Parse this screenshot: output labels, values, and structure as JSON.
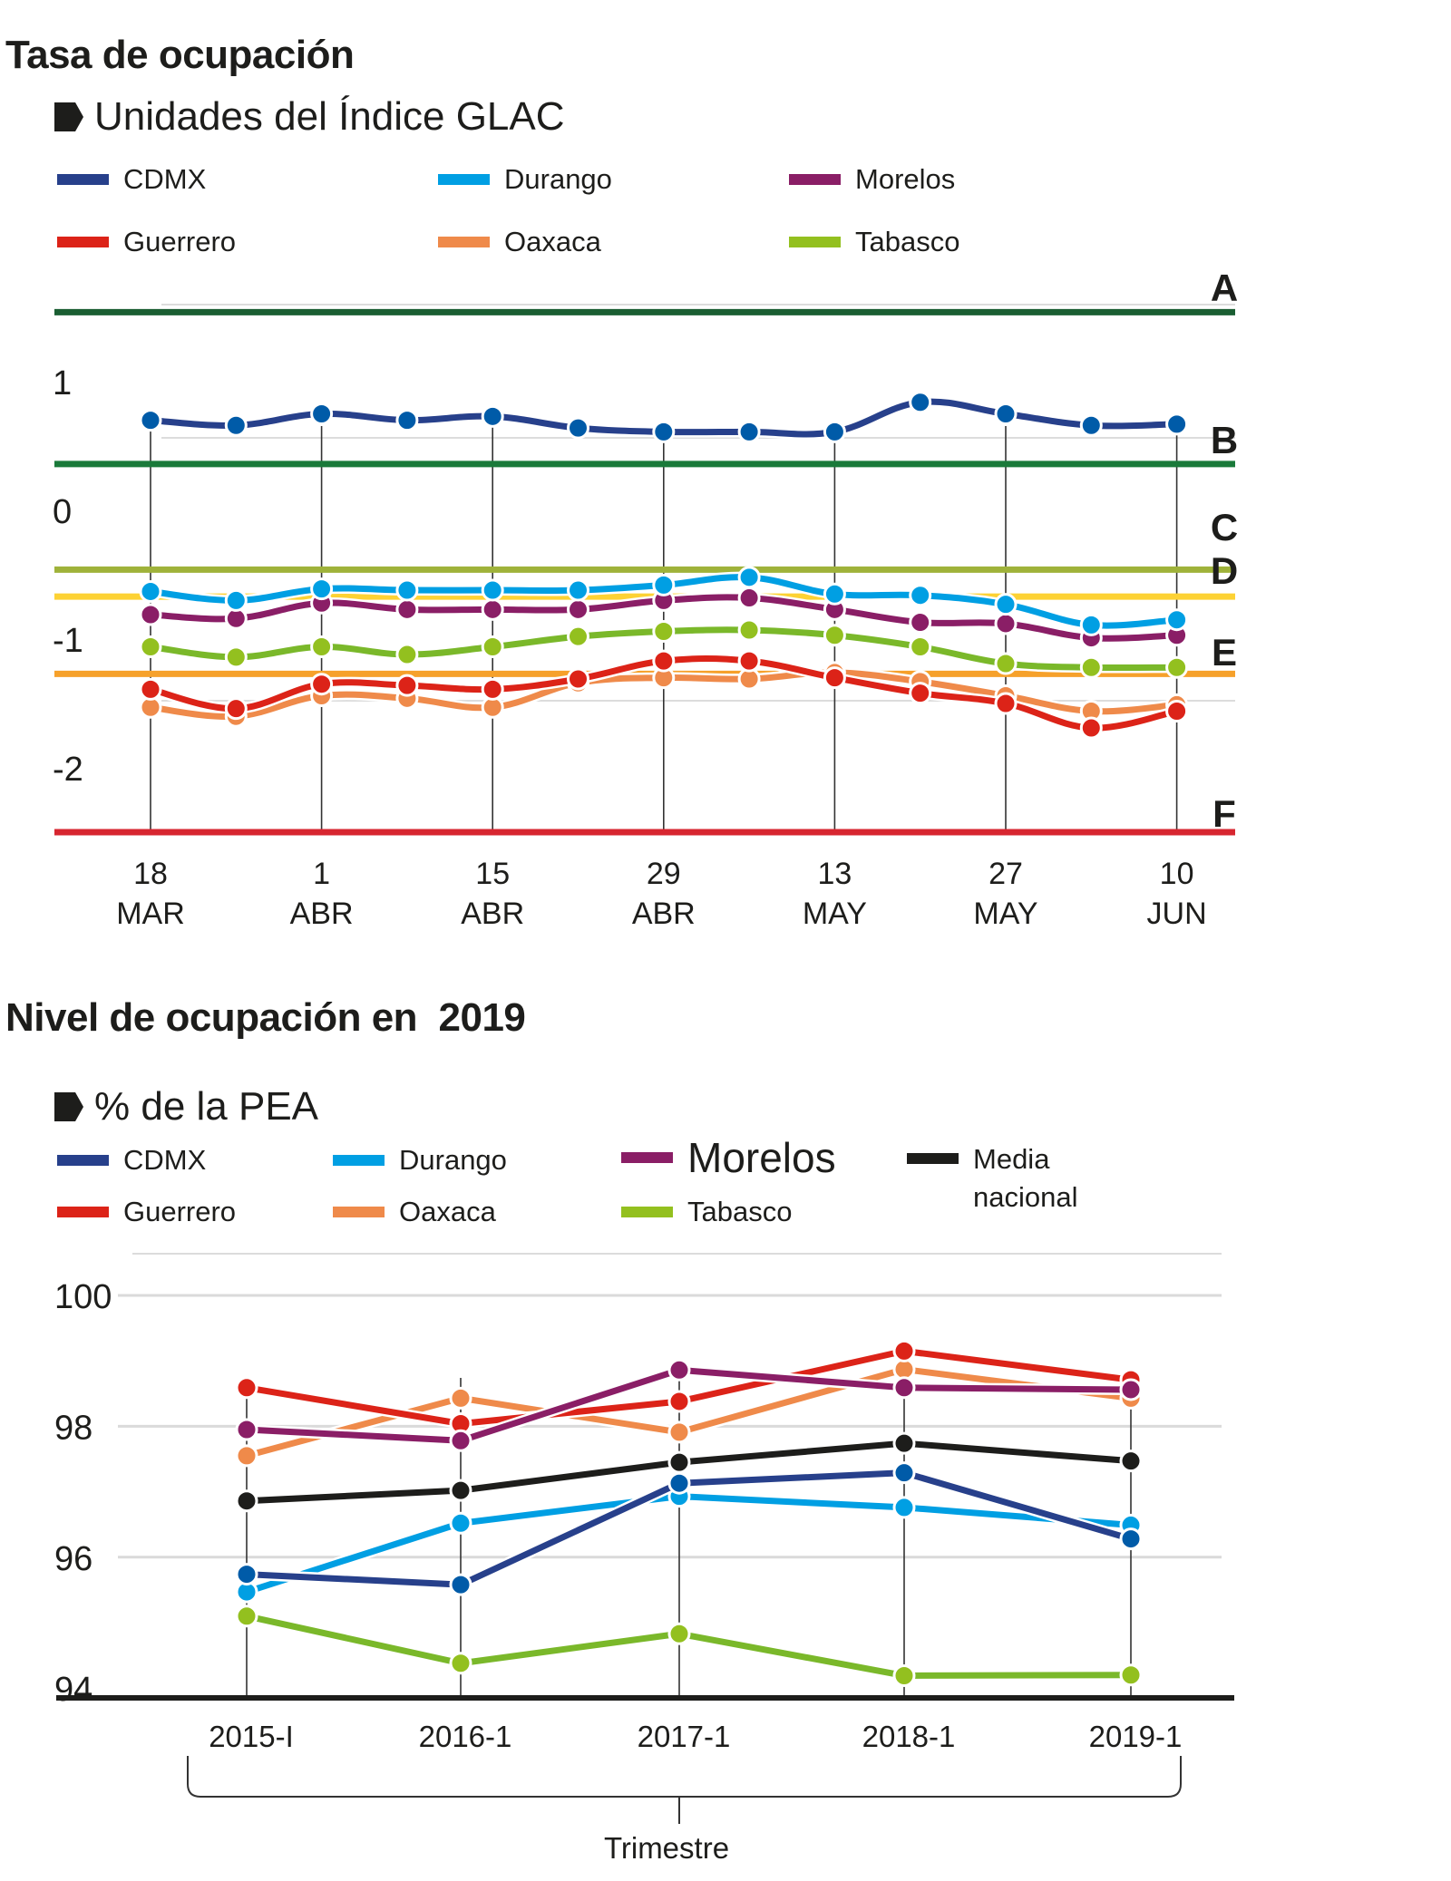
{
  "chart_data": [
    {
      "type": "line",
      "title": "Tasa de ocupación",
      "subtitle": "Unidades del Índice GLAC",
      "xlabel": "",
      "ylabel": "",
      "ylim": [
        -2.5,
        1.55
      ],
      "y_ticks": [
        "1",
        "0",
        "-1",
        "-2"
      ],
      "y_tick_values": [
        1,
        0,
        -1,
        -2
      ],
      "x_tick_labels": [
        {
          "day": "18",
          "month": "MAR"
        },
        {
          "day": "1",
          "month": "ABR"
        },
        {
          "day": "15",
          "month": "ABR"
        },
        {
          "day": "29",
          "month": "ABR"
        },
        {
          "day": "13",
          "month": "MAY"
        },
        {
          "day": "27",
          "month": "MAY"
        },
        {
          "day": "10",
          "month": "JUN"
        }
      ],
      "x_tick_every": 2,
      "n_points": 13,
      "grid": false,
      "legend_position": "top",
      "series": [
        {
          "name": "CDMX",
          "color": "#27408b",
          "marker_color": "#005ba8",
          "values": [
            0.7,
            0.66,
            0.75,
            0.7,
            0.73,
            0.64,
            0.61,
            0.61,
            0.61,
            0.84,
            0.75,
            0.66,
            0.67
          ]
        },
        {
          "name": "Durango",
          "color": "#009fe3",
          "marker_color": "#009fe3",
          "values": [
            -0.63,
            -0.7,
            -0.61,
            -0.62,
            -0.62,
            -0.62,
            -0.58,
            -0.52,
            -0.65,
            -0.66,
            -0.73,
            -0.89,
            -0.85
          ]
        },
        {
          "name": "Morelos",
          "color": "#8a1e66",
          "marker_color": "#8a1e66",
          "values": [
            -0.81,
            -0.84,
            -0.72,
            -0.77,
            -0.77,
            -0.77,
            -0.7,
            -0.68,
            -0.77,
            -0.87,
            -0.88,
            -0.99,
            -0.97
          ]
        },
        {
          "name": "Guerrero",
          "color": "#dc2318",
          "marker_color": "#dc2318",
          "values": [
            -1.39,
            -1.54,
            -1.35,
            -1.36,
            -1.39,
            -1.31,
            -1.17,
            -1.17,
            -1.3,
            -1.42,
            -1.5,
            -1.69,
            -1.56
          ]
        },
        {
          "name": "Oaxaca",
          "color": "#ef8a4a",
          "marker_color": "#ef8a4a",
          "values": [
            -1.53,
            -1.6,
            -1.44,
            -1.46,
            -1.53,
            -1.34,
            -1.3,
            -1.31,
            -1.26,
            -1.33,
            -1.44,
            -1.56,
            -1.51
          ]
        },
        {
          "name": "Tabasco",
          "color": "#7ab82a",
          "marker_color": "#93c01f",
          "values": [
            -1.06,
            -1.14,
            -1.06,
            -1.12,
            -1.06,
            -0.98,
            -0.94,
            -0.93,
            -0.97,
            -1.06,
            -1.19,
            -1.22,
            -1.22
          ]
        }
      ],
      "reference_lines": [
        {
          "label": "A",
          "value": 1.54,
          "color": "#1a5e32"
        },
        {
          "label": "B",
          "value": 0.36,
          "color": "#1a7a3a"
        },
        {
          "label": "C",
          "value": -0.46,
          "color": "#9fb23a"
        },
        {
          "label": "D",
          "value": -0.67,
          "color": "#fdd234"
        },
        {
          "label": "E",
          "value": -1.27,
          "color": "#f6a12b"
        },
        {
          "label": "F",
          "value": -2.5,
          "color": "#d72630"
        }
      ]
    },
    {
      "type": "line",
      "title": "Nivel de ocupación en  2019",
      "subtitle": "% de la PEA",
      "xlabel": "Trimestre",
      "ylabel": "",
      "ylim": [
        94,
        100
      ],
      "y_ticks": [
        "100",
        "98",
        "96",
        "94"
      ],
      "y_tick_values": [
        100,
        98,
        96,
        94
      ],
      "categories": [
        "2015-I",
        "2016-1",
        "2017-1",
        "2018-1",
        "2019-1"
      ],
      "grid": true,
      "legend_position": "top",
      "series": [
        {
          "name": "CDMX",
          "color": "#27408b",
          "marker_color": "#005ba8",
          "values": [
            95.74,
            95.58,
            97.13,
            97.29,
            96.28
          ]
        },
        {
          "name": "Durango",
          "color": "#009fe3",
          "marker_color": "#009fe3",
          "values": [
            95.47,
            96.52,
            96.93,
            96.76,
            96.49
          ]
        },
        {
          "name": "Morelos",
          "color": "#8a1e66",
          "marker_color": "#8a1e66",
          "values": [
            97.95,
            97.78,
            98.86,
            98.59,
            98.56
          ]
        },
        {
          "name": "Media nacional",
          "color": "#1d1d1b",
          "marker_color": "#1d1d1b",
          "values": [
            96.86,
            97.02,
            97.45,
            97.74,
            97.47
          ]
        },
        {
          "name": "Guerrero",
          "color": "#dc2318",
          "marker_color": "#dc2318",
          "values": [
            98.59,
            98.04,
            98.38,
            99.15,
            98.71
          ]
        },
        {
          "name": "Oaxaca",
          "color": "#ef8a4a",
          "marker_color": "#ef8a4a",
          "values": [
            97.55,
            98.43,
            97.91,
            98.87,
            98.43
          ]
        },
        {
          "name": "Tabasco",
          "color": "#7ab82a",
          "marker_color": "#93c01f",
          "values": [
            95.1,
            94.38,
            94.83,
            94.19,
            94.2
          ]
        }
      ]
    }
  ],
  "chart1": {
    "title": "Tasa de ocupación",
    "subtitle": "Unidades del Índice GLAC",
    "legend": [
      {
        "label": "CDMX",
        "color": "#27408b"
      },
      {
        "label": "Durango",
        "color": "#009fe3"
      },
      {
        "label": "Morelos",
        "color": "#8a1e66"
      },
      {
        "label": "Guerrero",
        "color": "#dc2318"
      },
      {
        "label": "Oaxaca",
        "color": "#ef8a4a"
      },
      {
        "label": "Tabasco",
        "color": "#93c01f"
      }
    ]
  },
  "chart2": {
    "title": "Nivel de ocupación en  2019",
    "subtitle": "% de la PEA",
    "xlabel": "Trimestre",
    "legend": [
      {
        "label": "CDMX",
        "color": "#27408b"
      },
      {
        "label": "Durango",
        "color": "#009fe3"
      },
      {
        "label": "Morelos",
        "color": "#8a1e66"
      },
      {
        "label": "Media nacional",
        "color": "#1d1d1b"
      },
      {
        "label": "Guerrero",
        "color": "#dc2318"
      },
      {
        "label": "Oaxaca",
        "color": "#ef8a4a"
      },
      {
        "label": "Tabasco",
        "color": "#93c01f"
      }
    ]
  }
}
